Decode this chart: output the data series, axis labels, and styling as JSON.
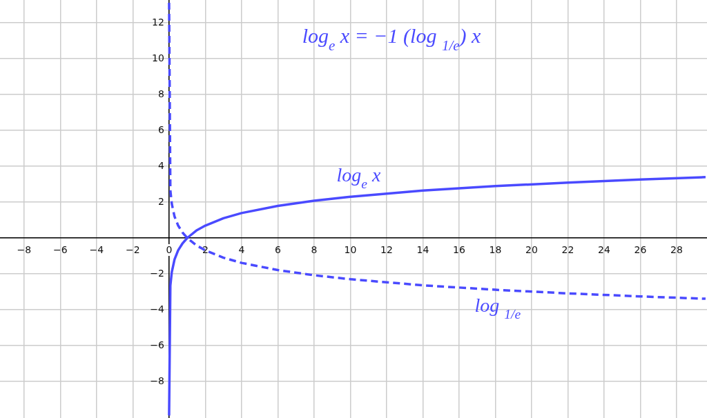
{
  "chart_data": {
    "type": "line",
    "annotations": [
      "log$_{e}$ x = −1 (log $_{1/e}$) x"
    ],
    "series": [
      {
        "name": "log$_{e}$ x",
        "color": "#4a4aff",
        "line_style": "solid",
        "x": [
          5e-05,
          0.07,
          0.15,
          0.3,
          0.5,
          0.75,
          1,
          1.5,
          2,
          3,
          4,
          6,
          8,
          10,
          14,
          18,
          22,
          26,
          29.6
        ],
        "values": [
          -9.9,
          -2.66,
          -1.9,
          -1.2,
          -0.69,
          -0.29,
          0,
          0.41,
          0.69,
          1.1,
          1.39,
          1.79,
          2.08,
          2.3,
          2.64,
          2.89,
          3.09,
          3.26,
          3.39
        ]
      },
      {
        "name": "log $_{1/e}$",
        "color": "#4a4aff",
        "line_style": "dashed",
        "x": [
          2e-06,
          0.07,
          0.15,
          0.3,
          0.5,
          0.75,
          1,
          1.5,
          2,
          3,
          4,
          6,
          8,
          10,
          14,
          18,
          22,
          26,
          29.6
        ],
        "values": [
          13.12,
          2.66,
          1.9,
          1.2,
          0.69,
          0.29,
          0,
          -0.41,
          -0.69,
          -1.1,
          -1.39,
          -1.79,
          -2.08,
          -2.3,
          -2.64,
          -2.89,
          -3.09,
          -3.26,
          -3.39
        ]
      }
    ],
    "xlim": [
      -9.33,
      29.68
    ],
    "ylim": [
      -10.04,
      13.27
    ],
    "xticks": [
      {
        "value": -8,
        "label": "−8"
      },
      {
        "value": -6,
        "label": "−6"
      },
      {
        "value": -4,
        "label": "−4"
      },
      {
        "value": -2,
        "label": "−2"
      },
      0,
      2,
      4,
      6,
      8,
      10,
      12,
      14,
      16,
      18,
      20,
      22,
      24,
      26,
      28
    ],
    "yticks": [
      {
        "value": -8,
        "label": "−8"
      },
      {
        "value": -6,
        "label": "−6"
      },
      {
        "value": -4,
        "label": "−4"
      },
      {
        "value": -2,
        "label": "−2"
      },
      {
        "value": 0,
        "label": null
      },
      2,
      4,
      6,
      8,
      10,
      12
    ],
    "grid": true,
    "legend": false,
    "marker": "none"
  }
}
